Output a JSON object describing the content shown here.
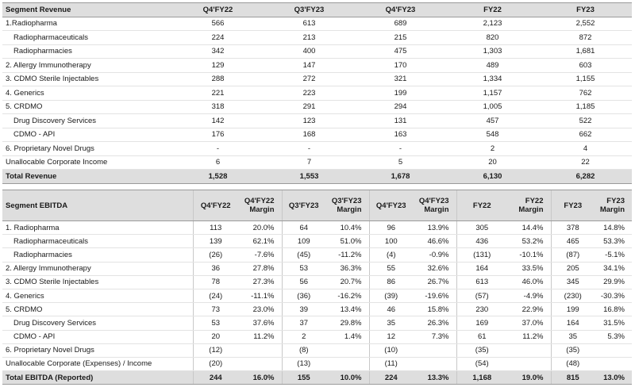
{
  "revenue": {
    "header": [
      "Segment Revenue",
      "Q4'FY22",
      "Q3'FY23",
      "Q4'FY23",
      "FY22",
      "FY23"
    ],
    "rows": [
      {
        "label": "1.Radiopharma",
        "indent": false,
        "values": [
          "566",
          "613",
          "689",
          "2,123",
          "2,552"
        ]
      },
      {
        "label": "Radiopharmaceuticals",
        "indent": true,
        "values": [
          "224",
          "213",
          "215",
          "820",
          "872"
        ]
      },
      {
        "label": "Radiopharmacies",
        "indent": true,
        "values": [
          "342",
          "400",
          "475",
          "1,303",
          "1,681"
        ]
      },
      {
        "label": "2. Allergy Immunotherapy",
        "indent": false,
        "values": [
          "129",
          "147",
          "170",
          "489",
          "603"
        ]
      },
      {
        "label": "3. CDMO Sterile Injectables",
        "indent": false,
        "values": [
          "288",
          "272",
          "321",
          "1,334",
          "1,155"
        ]
      },
      {
        "label": "4. Generics",
        "indent": false,
        "values": [
          "221",
          "223",
          "199",
          "1,157",
          "762"
        ]
      },
      {
        "label": "5. CRDMO",
        "indent": false,
        "values": [
          "318",
          "291",
          "294",
          "1,005",
          "1,185"
        ]
      },
      {
        "label": "Drug Discovery Services",
        "indent": true,
        "values": [
          "142",
          "123",
          "131",
          "457",
          "522"
        ]
      },
      {
        "label": "CDMO - API",
        "indent": true,
        "values": [
          "176",
          "168",
          "163",
          "548",
          "662"
        ]
      },
      {
        "label": "6. Proprietary Novel Drugs",
        "indent": false,
        "values": [
          "-",
          "-",
          "-",
          "2",
          "4"
        ]
      },
      {
        "label": "Unallocable Corporate Income",
        "indent": false,
        "values": [
          "6",
          "7",
          "5",
          "20",
          "22"
        ]
      }
    ],
    "total": {
      "label": "Total Revenue",
      "values": [
        "1,528",
        "1,553",
        "1,678",
        "6,130",
        "6,282"
      ]
    }
  },
  "ebitda": {
    "header": [
      "Segment EBITDA",
      "Q4'FY22",
      "Q4'FY22 Margin",
      "Q3'FY23",
      "Q3'FY23 Margin",
      "Q4'FY23",
      "Q4'FY23 Margin",
      "FY22",
      "FY22 Margin",
      "FY23",
      "FY23 Margin"
    ],
    "rows": [
      {
        "label": "1. Radiopharma",
        "indent": false,
        "values": [
          "113",
          "20.0%",
          "64",
          "10.4%",
          "96",
          "13.9%",
          "305",
          "14.4%",
          "378",
          "14.8%"
        ]
      },
      {
        "label": "Radiopharmaceuticals",
        "indent": true,
        "values": [
          "139",
          "62.1%",
          "109",
          "51.0%",
          "100",
          "46.6%",
          "436",
          "53.2%",
          "465",
          "53.3%"
        ]
      },
      {
        "label": "Radiopharmacies",
        "indent": true,
        "values": [
          "(26)",
          "-7.6%",
          "(45)",
          "-11.2%",
          "(4)",
          "-0.9%",
          "(131)",
          "-10.1%",
          "(87)",
          "-5.1%"
        ]
      },
      {
        "label": "2. Allergy Immunotherapy",
        "indent": false,
        "values": [
          "36",
          "27.8%",
          "53",
          "36.3%",
          "55",
          "32.6%",
          "164",
          "33.5%",
          "205",
          "34.1%"
        ]
      },
      {
        "label": "3. CDMO Sterile Injectables",
        "indent": false,
        "values": [
          "78",
          "27.3%",
          "56",
          "20.7%",
          "86",
          "26.7%",
          "613",
          "46.0%",
          "345",
          "29.9%"
        ]
      },
      {
        "label": "4. Generics",
        "indent": false,
        "values": [
          "(24)",
          "-11.1%",
          "(36)",
          "-16.2%",
          "(39)",
          "-19.6%",
          "(57)",
          "-4.9%",
          "(230)",
          "-30.3%"
        ]
      },
      {
        "label": "5. CRDMO",
        "indent": false,
        "values": [
          "73",
          "23.0%",
          "39",
          "13.4%",
          "46",
          "15.8%",
          "230",
          "22.9%",
          "199",
          "16.8%"
        ]
      },
      {
        "label": "Drug Discovery Services",
        "indent": true,
        "values": [
          "53",
          "37.6%",
          "37",
          "29.8%",
          "35",
          "26.3%",
          "169",
          "37.0%",
          "164",
          "31.5%"
        ]
      },
      {
        "label": "CDMO - API",
        "indent": true,
        "values": [
          "20",
          "11.2%",
          "2",
          "1.4%",
          "12",
          "7.3%",
          "61",
          "11.2%",
          "35",
          "5.3%"
        ]
      },
      {
        "label": "6. Proprietary Novel Drugs",
        "indent": false,
        "values": [
          "(12)",
          "",
          "(8)",
          "",
          "(10)",
          "",
          "(35)",
          "",
          "(35)",
          ""
        ]
      },
      {
        "label": "Unallocable Corporate (Expenses) / Income",
        "indent": false,
        "values": [
          "(20)",
          "",
          "(13)",
          "",
          "(11)",
          "",
          "(54)",
          "",
          "(48)",
          ""
        ]
      }
    ],
    "total": {
      "label": "Total EBITDA (Reported)",
      "values": [
        "244",
        "16.0%",
        "155",
        "10.0%",
        "224",
        "13.3%",
        "1,168",
        "19.0%",
        "815",
        "13.0%"
      ]
    }
  }
}
